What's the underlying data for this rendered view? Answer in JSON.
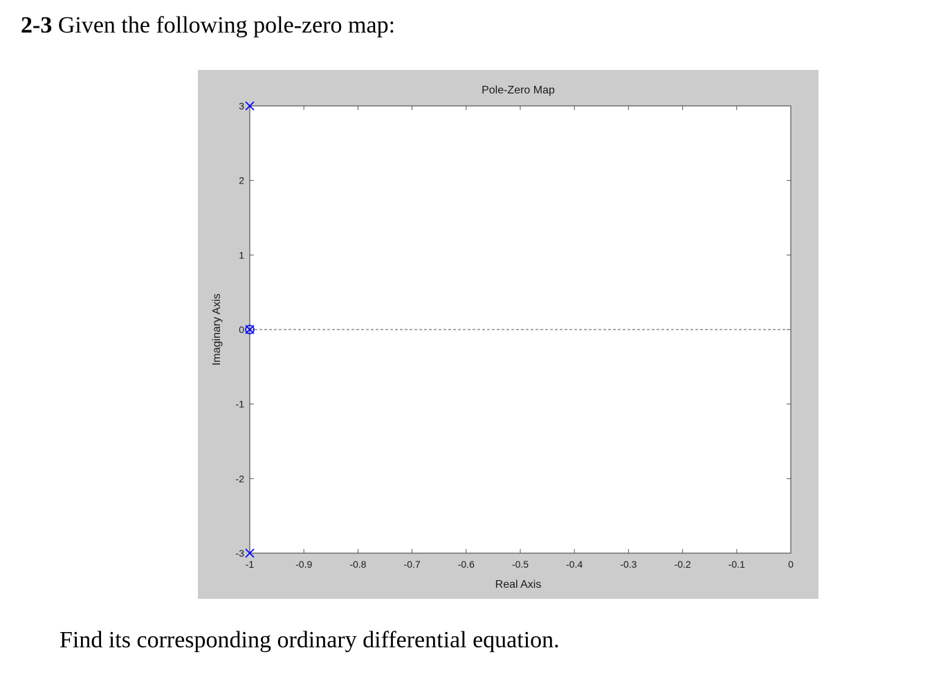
{
  "problem": {
    "number": "2-3",
    "text": "Given the following pole-zero map:"
  },
  "question": {
    "text": "Find its corresponding ordinary differential equation."
  },
  "chart_data": {
    "type": "scatter",
    "title": "Pole-Zero Map",
    "xlabel": "Real Axis",
    "ylabel": "Imaginary Axis",
    "xlim": [
      -1,
      0
    ],
    "ylim": [
      -3,
      3
    ],
    "xticks": [
      -1,
      -0.9,
      -0.8,
      -0.7,
      -0.6,
      -0.5,
      -0.4,
      -0.3,
      -0.2,
      -0.1,
      0
    ],
    "xtick_labels": [
      "-1",
      "-0.9",
      "-0.8",
      "-0.7",
      "-0.6",
      "-0.5",
      "-0.4",
      "-0.3",
      "-0.2",
      "-0.1",
      "0"
    ],
    "yticks": [
      -3,
      -2,
      -1,
      0,
      1,
      2,
      3
    ],
    "ytick_labels": [
      "-3",
      "-2",
      "-1",
      "0",
      "1",
      "2",
      "3"
    ],
    "grid": false,
    "zero_line": "dashed",
    "marker_color": "#0000ff",
    "poles": [
      {
        "x": -1,
        "y": 3
      },
      {
        "x": -1,
        "y": -3
      },
      {
        "x": -1,
        "y": 0
      }
    ],
    "zeros": [
      {
        "x": -1,
        "y": 0
      }
    ]
  }
}
